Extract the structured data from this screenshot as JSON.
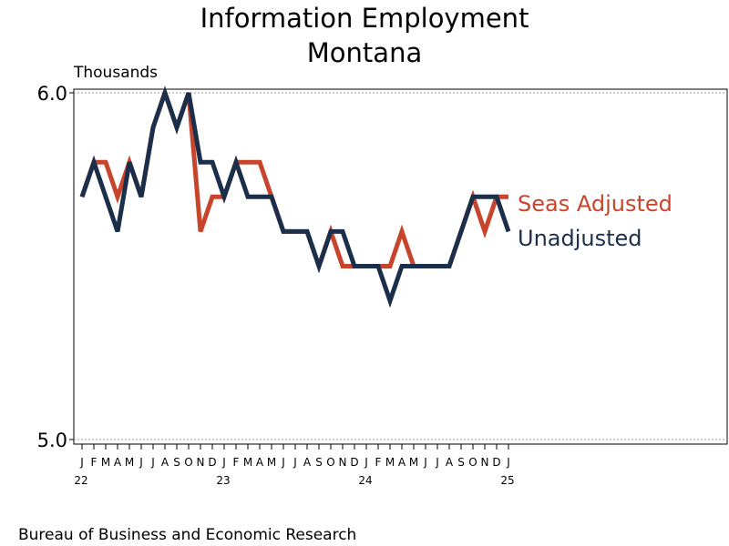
{
  "chart_data": {
    "type": "line",
    "title": [
      "Information Employment",
      "Montana"
    ],
    "ylabel": "Thousands",
    "ylim": [
      5.0,
      6.0
    ],
    "yticks": [
      "5.0",
      "6.0"
    ],
    "categories": [
      "J",
      "F",
      "M",
      "A",
      "M",
      "J",
      "J",
      "A",
      "S",
      "O",
      "N",
      "D",
      "J",
      "F",
      "M",
      "A",
      "M",
      "J",
      "J",
      "A",
      "S",
      "O",
      "N",
      "D",
      "J",
      "F",
      "M",
      "A",
      "M",
      "J",
      "J",
      "A",
      "S",
      "O",
      "N",
      "D",
      "J"
    ],
    "year_labels": [
      {
        "index": 0,
        "label": "22"
      },
      {
        "index": 12,
        "label": "23"
      },
      {
        "index": 24,
        "label": "24"
      },
      {
        "index": 36,
        "label": "25"
      }
    ],
    "series": [
      {
        "name": "Seas Adjusted",
        "color": "#c8452d",
        "values": [
          5.7,
          5.8,
          5.8,
          5.7,
          5.8,
          5.7,
          5.9,
          6.0,
          5.9,
          6.0,
          5.6,
          5.7,
          5.7,
          5.8,
          5.8,
          5.8,
          5.7,
          5.6,
          5.6,
          5.6,
          5.5,
          5.6,
          5.5,
          5.5,
          5.5,
          5.5,
          5.5,
          5.6,
          5.5,
          5.5,
          5.5,
          5.5,
          5.6,
          5.7,
          5.6,
          5.7,
          5.7
        ]
      },
      {
        "name": "Unadjusted",
        "color": "#1c2f4a",
        "values": [
          5.7,
          5.8,
          5.7,
          5.6,
          5.8,
          5.7,
          5.9,
          6.0,
          5.9,
          6.0,
          5.8,
          5.8,
          5.7,
          5.8,
          5.7,
          5.7,
          5.7,
          5.6,
          5.6,
          5.6,
          5.5,
          5.6,
          5.6,
          5.5,
          5.5,
          5.5,
          5.4,
          5.5,
          5.5,
          5.5,
          5.5,
          5.5,
          5.6,
          5.7,
          5.7,
          5.7,
          5.6
        ]
      }
    ],
    "grid": false
  },
  "source": "Bureau of Business and Economic Research"
}
